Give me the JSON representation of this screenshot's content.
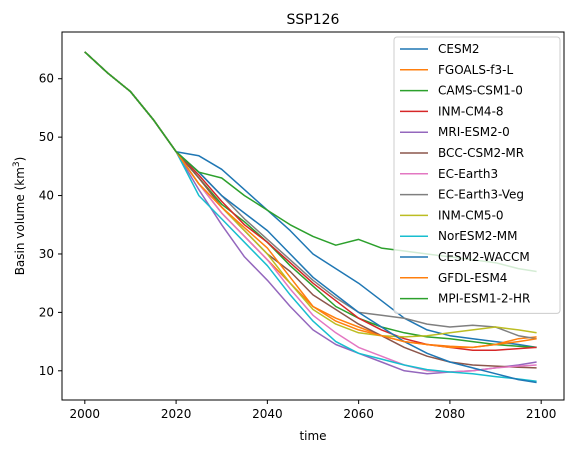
{
  "chart_data": {
    "type": "line",
    "title": "SSP126",
    "xlabel": "time",
    "ylabel_main": "Basin volume (km",
    "ylabel_sup": "3",
    "ylabel_end": ")",
    "xlim": [
      1995,
      2105
    ],
    "ylim": [
      5,
      68
    ],
    "xticks": [
      2000,
      2020,
      2040,
      2060,
      2080,
      2100
    ],
    "yticks": [
      10,
      20,
      30,
      40,
      50,
      60
    ],
    "legend_position": "top-right",
    "grid": false,
    "series": [
      {
        "name": "CESM2",
        "color": "#1f77b4",
        "points": [
          [
            2000,
            64.6
          ],
          [
            2005,
            61
          ],
          [
            2010,
            57.8
          ],
          [
            2015,
            53
          ],
          [
            2020,
            47.5
          ],
          [
            2025,
            46.8
          ],
          [
            2030,
            44.5
          ],
          [
            2035,
            41
          ],
          [
            2040,
            37.5
          ],
          [
            2045,
            34
          ],
          [
            2050,
            30
          ],
          [
            2055,
            27.5
          ],
          [
            2060,
            25
          ],
          [
            2065,
            22
          ],
          [
            2070,
            19
          ],
          [
            2075,
            17
          ],
          [
            2080,
            16
          ],
          [
            2085,
            15.5
          ],
          [
            2090,
            15
          ],
          [
            2095,
            14.5
          ],
          [
            2099,
            14
          ]
        ]
      },
      {
        "name": "FGOALS-f3-L",
        "color": "#ff7f0e",
        "points": [
          [
            2000,
            64.6
          ],
          [
            2005,
            61
          ],
          [
            2010,
            57.8
          ],
          [
            2015,
            53
          ],
          [
            2020,
            47.5
          ],
          [
            2025,
            42
          ],
          [
            2030,
            37
          ],
          [
            2035,
            33
          ],
          [
            2040,
            29
          ],
          [
            2045,
            25
          ],
          [
            2050,
            21
          ],
          [
            2055,
            19
          ],
          [
            2060,
            17.5
          ],
          [
            2065,
            16
          ],
          [
            2070,
            15
          ],
          [
            2075,
            14.5
          ],
          [
            2080,
            14.2
          ],
          [
            2085,
            14
          ],
          [
            2090,
            14.5
          ],
          [
            2095,
            15.5
          ],
          [
            2099,
            15.8
          ]
        ]
      },
      {
        "name": "CAMS-CSM1-0",
        "color": "#2ca02c",
        "points": [
          [
            2000,
            64.6
          ],
          [
            2005,
            61
          ],
          [
            2010,
            57.8
          ],
          [
            2015,
            53
          ],
          [
            2020,
            47.5
          ],
          [
            2025,
            43
          ],
          [
            2030,
            38.5
          ],
          [
            2035,
            35.5
          ],
          [
            2040,
            32
          ],
          [
            2045,
            28
          ],
          [
            2050,
            24.5
          ],
          [
            2055,
            21
          ],
          [
            2060,
            19
          ],
          [
            2065,
            17.5
          ],
          [
            2070,
            16.5
          ],
          [
            2075,
            15.8
          ],
          [
            2080,
            15.5
          ],
          [
            2085,
            15
          ],
          [
            2090,
            14.5
          ],
          [
            2095,
            14.2
          ],
          [
            2099,
            14
          ]
        ]
      },
      {
        "name": "INM-CM4-8",
        "color": "#d62728",
        "points": [
          [
            2000,
            64.6
          ],
          [
            2005,
            61
          ],
          [
            2010,
            57.8
          ],
          [
            2015,
            53
          ],
          [
            2020,
            47.5
          ],
          [
            2025,
            43.5
          ],
          [
            2030,
            39
          ],
          [
            2035,
            35
          ],
          [
            2040,
            32
          ],
          [
            2045,
            28.5
          ],
          [
            2050,
            25
          ],
          [
            2055,
            22
          ],
          [
            2060,
            19
          ],
          [
            2065,
            17
          ],
          [
            2070,
            15.5
          ],
          [
            2075,
            14.5
          ],
          [
            2080,
            14
          ],
          [
            2085,
            13.5
          ],
          [
            2090,
            13.5
          ],
          [
            2095,
            13.8
          ],
          [
            2099,
            14
          ]
        ]
      },
      {
        "name": "MRI-ESM2-0",
        "color": "#9467bd",
        "points": [
          [
            2000,
            64.6
          ],
          [
            2005,
            61
          ],
          [
            2010,
            57.8
          ],
          [
            2015,
            53
          ],
          [
            2020,
            47.5
          ],
          [
            2025,
            41
          ],
          [
            2030,
            35
          ],
          [
            2035,
            29.5
          ],
          [
            2040,
            25.5
          ],
          [
            2045,
            21
          ],
          [
            2050,
            17
          ],
          [
            2055,
            14.5
          ],
          [
            2060,
            13
          ],
          [
            2065,
            11.5
          ],
          [
            2070,
            10
          ],
          [
            2075,
            9.5
          ],
          [
            2080,
            9.8
          ],
          [
            2085,
            10
          ],
          [
            2090,
            10.5
          ],
          [
            2095,
            11
          ],
          [
            2099,
            11.5
          ]
        ]
      },
      {
        "name": "BCC-CSM2-MR",
        "color": "#8c564b",
        "points": [
          [
            2000,
            64.6
          ],
          [
            2005,
            61
          ],
          [
            2010,
            57.8
          ],
          [
            2015,
            53
          ],
          [
            2020,
            47.5
          ],
          [
            2025,
            43
          ],
          [
            2030,
            38
          ],
          [
            2035,
            34
          ],
          [
            2040,
            30
          ],
          [
            2045,
            27
          ],
          [
            2050,
            23
          ],
          [
            2055,
            20.5
          ],
          [
            2060,
            18
          ],
          [
            2065,
            16
          ],
          [
            2070,
            14
          ],
          [
            2075,
            12.5
          ],
          [
            2080,
            11.5
          ],
          [
            2085,
            11
          ],
          [
            2090,
            10.8
          ],
          [
            2095,
            10.6
          ],
          [
            2099,
            10.5
          ]
        ]
      },
      {
        "name": "EC-Earth3",
        "color": "#e377c2",
        "points": [
          [
            2000,
            64.6
          ],
          [
            2005,
            61
          ],
          [
            2010,
            57.8
          ],
          [
            2015,
            53
          ],
          [
            2020,
            47.5
          ],
          [
            2025,
            42
          ],
          [
            2030,
            37
          ],
          [
            2035,
            33
          ],
          [
            2040,
            29
          ],
          [
            2045,
            24
          ],
          [
            2050,
            19.5
          ],
          [
            2055,
            16.5
          ],
          [
            2060,
            14
          ],
          [
            2065,
            12.5
          ],
          [
            2070,
            11
          ],
          [
            2075,
            10
          ],
          [
            2080,
            9.8
          ],
          [
            2085,
            10
          ],
          [
            2090,
            10.5
          ],
          [
            2095,
            10.8
          ],
          [
            2099,
            11
          ]
        ]
      },
      {
        "name": "EC-Earth3-Veg",
        "color": "#7f7f7f",
        "points": [
          [
            2000,
            64.6
          ],
          [
            2005,
            61
          ],
          [
            2010,
            57.8
          ],
          [
            2015,
            53
          ],
          [
            2020,
            47.5
          ],
          [
            2025,
            44
          ],
          [
            2030,
            40
          ],
          [
            2035,
            36
          ],
          [
            2040,
            32.5
          ],
          [
            2045,
            29
          ],
          [
            2050,
            25.5
          ],
          [
            2055,
            22.5
          ],
          [
            2060,
            20
          ],
          [
            2065,
            19.5
          ],
          [
            2070,
            19
          ],
          [
            2075,
            18
          ],
          [
            2080,
            17.5
          ],
          [
            2085,
            17.8
          ],
          [
            2090,
            17.5
          ],
          [
            2095,
            16
          ],
          [
            2099,
            15.5
          ]
        ]
      },
      {
        "name": "INM-CM5-0",
        "color": "#bcbd22",
        "points": [
          [
            2000,
            64.6
          ],
          [
            2005,
            61
          ],
          [
            2010,
            57.8
          ],
          [
            2015,
            53
          ],
          [
            2020,
            47.5
          ],
          [
            2025,
            42
          ],
          [
            2030,
            38
          ],
          [
            2035,
            34
          ],
          [
            2040,
            30
          ],
          [
            2045,
            25
          ],
          [
            2050,
            20.5
          ],
          [
            2055,
            18
          ],
          [
            2060,
            16.5
          ],
          [
            2065,
            16
          ],
          [
            2070,
            15.8
          ],
          [
            2075,
            16
          ],
          [
            2080,
            16.5
          ],
          [
            2085,
            17
          ],
          [
            2090,
            17.5
          ],
          [
            2095,
            17
          ],
          [
            2099,
            16.5
          ]
        ]
      },
      {
        "name": "NorESM2-MM",
        "color": "#17becf",
        "points": [
          [
            2000,
            64.6
          ],
          [
            2005,
            61
          ],
          [
            2010,
            57.8
          ],
          [
            2015,
            53
          ],
          [
            2020,
            47.5
          ],
          [
            2025,
            40
          ],
          [
            2030,
            36
          ],
          [
            2035,
            32
          ],
          [
            2040,
            28
          ],
          [
            2045,
            23
          ],
          [
            2050,
            18.5
          ],
          [
            2055,
            15
          ],
          [
            2060,
            13
          ],
          [
            2065,
            12
          ],
          [
            2070,
            11
          ],
          [
            2075,
            10.2
          ],
          [
            2080,
            9.8
          ],
          [
            2085,
            9.5
          ],
          [
            2090,
            9
          ],
          [
            2095,
            8.6
          ],
          [
            2099,
            8.2
          ]
        ]
      },
      {
        "name": "CESM2-WACCM",
        "color": "#1f77b4",
        "points": [
          [
            2000,
            64.6
          ],
          [
            2005,
            61
          ],
          [
            2010,
            57.8
          ],
          [
            2015,
            53
          ],
          [
            2020,
            47.5
          ],
          [
            2025,
            44
          ],
          [
            2030,
            40
          ],
          [
            2035,
            37
          ],
          [
            2040,
            34
          ],
          [
            2045,
            30
          ],
          [
            2050,
            26
          ],
          [
            2055,
            23
          ],
          [
            2060,
            20
          ],
          [
            2065,
            17.5
          ],
          [
            2070,
            15
          ],
          [
            2075,
            13
          ],
          [
            2080,
            11.5
          ],
          [
            2085,
            10.5
          ],
          [
            2090,
            9.5
          ],
          [
            2095,
            8.5
          ],
          [
            2099,
            8
          ]
        ]
      },
      {
        "name": "GFDL-ESM4",
        "color": "#ff7f0e",
        "points": [
          [
            2000,
            64.6
          ],
          [
            2005,
            61
          ],
          [
            2010,
            57.8
          ],
          [
            2015,
            53
          ],
          [
            2020,
            47.5
          ],
          [
            2025,
            42
          ],
          [
            2030,
            38
          ],
          [
            2035,
            34.5
          ],
          [
            2040,
            31
          ],
          [
            2045,
            26
          ],
          [
            2050,
            21
          ],
          [
            2055,
            18.5
          ],
          [
            2060,
            17
          ],
          [
            2065,
            16
          ],
          [
            2070,
            15
          ],
          [
            2075,
            14.5
          ],
          [
            2080,
            14
          ],
          [
            2085,
            14
          ],
          [
            2090,
            14.5
          ],
          [
            2095,
            15
          ],
          [
            2099,
            15.5
          ]
        ]
      },
      {
        "name": "MPI-ESM1-2-HR",
        "color": "#2ca02c",
        "points": [
          [
            2000,
            64.6
          ],
          [
            2005,
            61
          ],
          [
            2010,
            57.8
          ],
          [
            2015,
            53
          ],
          [
            2020,
            47.5
          ],
          [
            2025,
            44
          ],
          [
            2030,
            43
          ],
          [
            2035,
            40
          ],
          [
            2040,
            37.5
          ],
          [
            2045,
            35
          ],
          [
            2050,
            33
          ],
          [
            2055,
            31.5
          ],
          [
            2060,
            32.5
          ],
          [
            2065,
            31
          ],
          [
            2070,
            30.5
          ],
          [
            2075,
            30
          ],
          [
            2080,
            29.5
          ],
          [
            2085,
            29
          ],
          [
            2090,
            28.5
          ],
          [
            2095,
            27.5
          ],
          [
            2099,
            27
          ]
        ]
      }
    ]
  }
}
